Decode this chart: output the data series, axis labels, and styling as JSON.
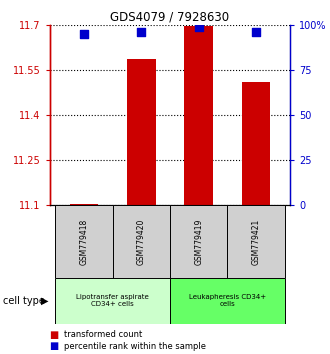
{
  "title": "GDS4079 / 7928630",
  "samples": [
    "GSM779418",
    "GSM779420",
    "GSM779419",
    "GSM779421"
  ],
  "transformed_counts": [
    11.103,
    11.585,
    11.695,
    11.51
  ],
  "percentile_ranks": [
    95,
    96,
    99,
    96
  ],
  "ylim_left": [
    11.1,
    11.7
  ],
  "ylim_right": [
    0,
    100
  ],
  "yticks_left": [
    11.1,
    11.25,
    11.4,
    11.55,
    11.7
  ],
  "yticks_right": [
    0,
    25,
    50,
    75,
    100
  ],
  "ytick_labels_left": [
    "11.1",
    "11.25",
    "11.4",
    "11.55",
    "11.7"
  ],
  "ytick_labels_right": [
    "0",
    "25",
    "50",
    "75",
    "100%"
  ],
  "bar_color": "#cc0000",
  "dot_color": "#0000cc",
  "grid_color": "#000000",
  "cell_types": [
    {
      "label": "Lipotransfer aspirate\nCD34+ cells",
      "color": "#ccffcc",
      "span": [
        0,
        1
      ]
    },
    {
      "label": "Leukapheresis CD34+\ncells",
      "color": "#66ff66",
      "span": [
        2,
        3
      ]
    }
  ],
  "cell_type_label": "cell type",
  "legend_bar_label": "transformed count",
  "legend_dot_label": "percentile rank within the sample",
  "bar_width": 0.5,
  "dot_size": 40,
  "background_color": "#ffffff",
  "gray_color": "#d0d0d0",
  "x_positions": [
    0,
    1,
    2,
    3
  ]
}
